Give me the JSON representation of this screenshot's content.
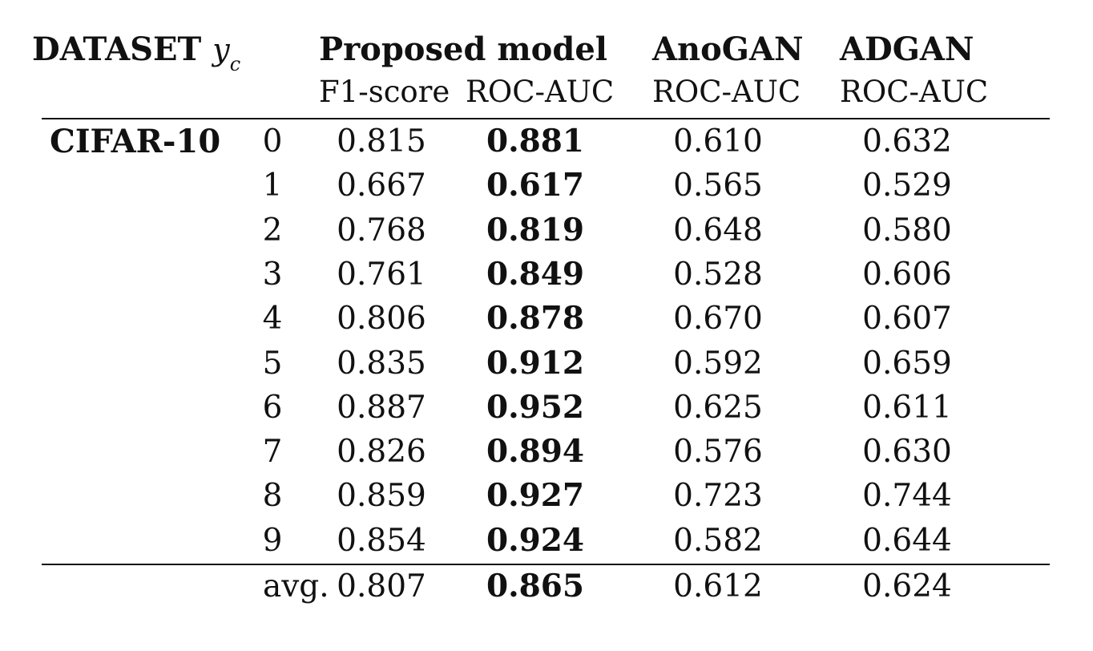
{
  "header": {
    "dataset_label": "DATASET",
    "class_var": "y",
    "class_var_sub": "c",
    "groups": [
      "Proposed model",
      "AnoGAN",
      "ADGAN"
    ],
    "metrics": [
      "F1-score",
      "ROC-AUC",
      "ROC-AUC",
      "ROC-AUC"
    ]
  },
  "dataset_name": "CIFAR-10",
  "rows": [
    {
      "yc": "0",
      "f1": "0.815",
      "roc": "0.881",
      "anogan": "0.610",
      "adgan": "0.632"
    },
    {
      "yc": "1",
      "f1": "0.667",
      "roc": "0.617",
      "anogan": "0.565",
      "adgan": "0.529"
    },
    {
      "yc": "2",
      "f1": "0.768",
      "roc": "0.819",
      "anogan": "0.648",
      "adgan": "0.580"
    },
    {
      "yc": "3",
      "f1": "0.761",
      "roc": "0.849",
      "anogan": "0.528",
      "adgan": "0.606"
    },
    {
      "yc": "4",
      "f1": "0.806",
      "roc": "0.878",
      "anogan": "0.670",
      "adgan": "0.607"
    },
    {
      "yc": "5",
      "f1": "0.835",
      "roc": "0.912",
      "anogan": "0.592",
      "adgan": "0.659"
    },
    {
      "yc": "6",
      "f1": "0.887",
      "roc": "0.952",
      "anogan": "0.625",
      "adgan": "0.611"
    },
    {
      "yc": "7",
      "f1": "0.826",
      "roc": "0.894",
      "anogan": "0.576",
      "adgan": "0.630"
    },
    {
      "yc": "8",
      "f1": "0.859",
      "roc": "0.927",
      "anogan": "0.723",
      "adgan": "0.744"
    },
    {
      "yc": "9",
      "f1": "0.854",
      "roc": "0.924",
      "anogan": "0.582",
      "adgan": "0.644"
    }
  ],
  "avg": {
    "label": "avg.",
    "f1": "0.807",
    "roc": "0.865",
    "anogan": "0.612",
    "adgan": "0.624"
  }
}
